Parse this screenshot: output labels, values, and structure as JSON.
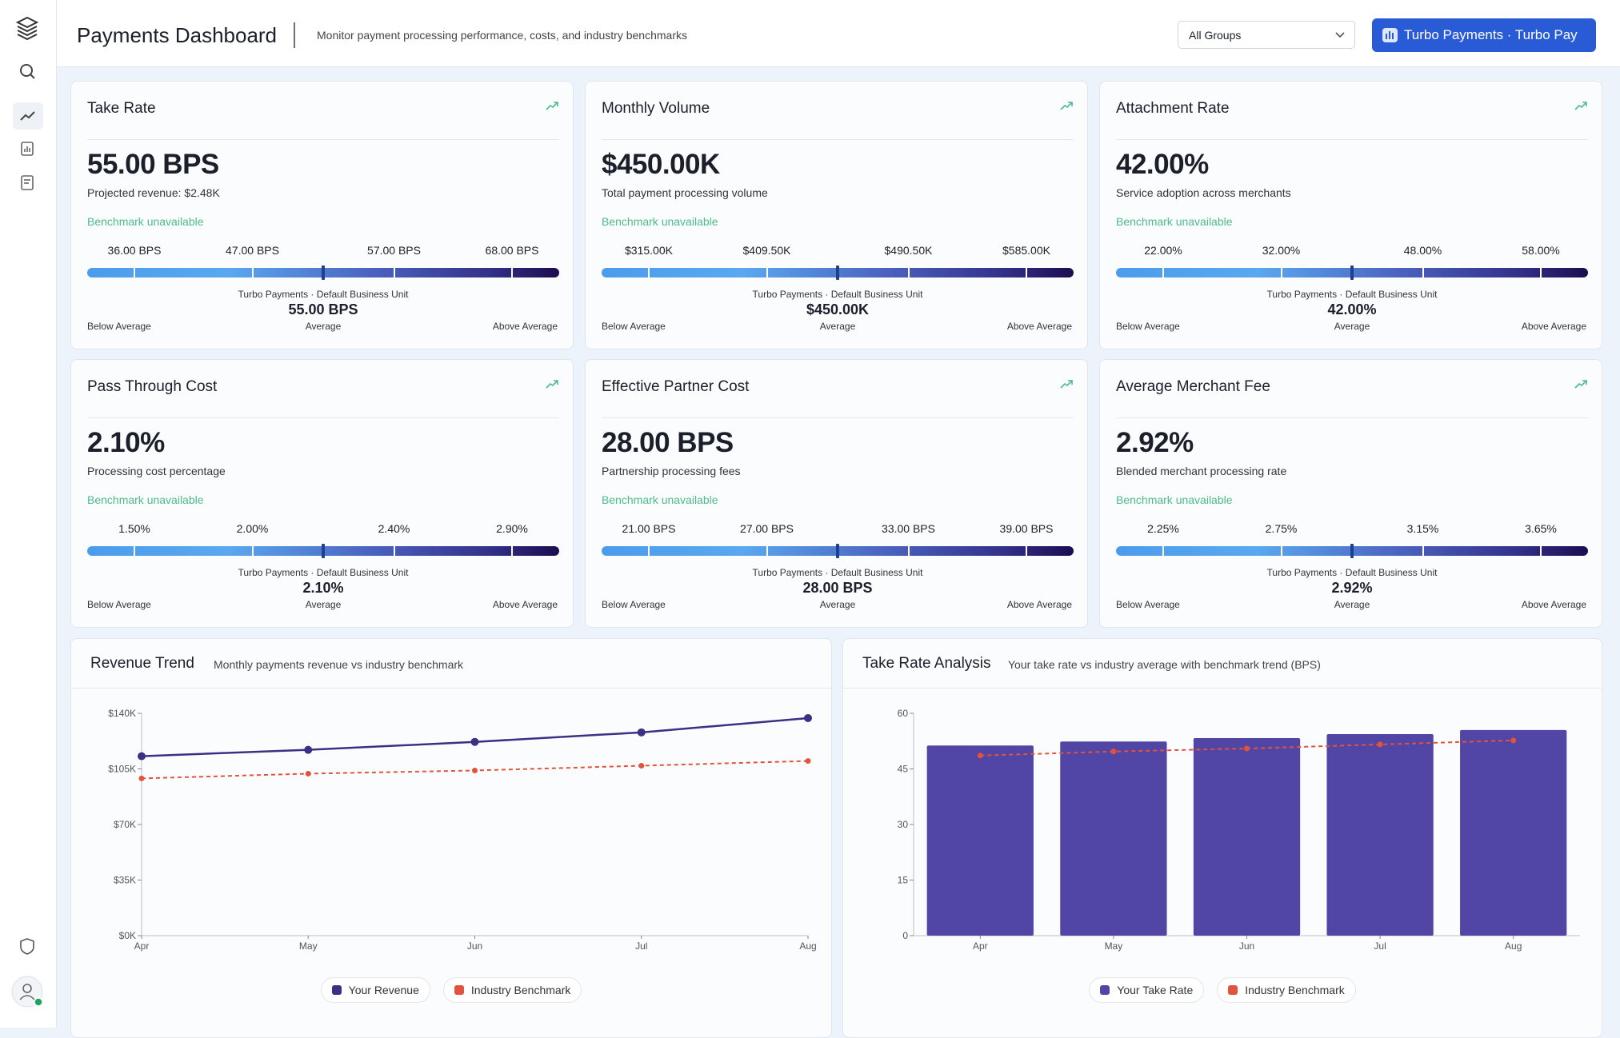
{
  "header": {
    "title": "Payments Dashboard",
    "subtitle": "Monitor payment processing performance, costs, and industry benchmarks",
    "group_select": "All Groups",
    "account_button": "Turbo Payments · Turbo Pay"
  },
  "cards": [
    {
      "title": "Take Rate",
      "value": "55.00 BPS",
      "subtitle": "Projected revenue: $2.48K",
      "benchmark": "Benchmark unavailable",
      "range_labels": [
        "36.00 BPS",
        "47.00 BPS",
        "57.00 BPS",
        "68.00 BPS"
      ],
      "unit_label": "Turbo Payments · Default Business Unit",
      "marker_value": "55.00 BPS",
      "scale_labels": [
        "Below Average",
        "Average",
        "Above Average"
      ]
    },
    {
      "title": "Monthly Volume",
      "value": "$450.00K",
      "subtitle": "Total payment processing volume",
      "benchmark": "Benchmark unavailable",
      "range_labels": [
        "$315.00K",
        "$409.50K",
        "$490.50K",
        "$585.00K"
      ],
      "unit_label": "Turbo Payments · Default Business Unit",
      "marker_value": "$450.00K",
      "scale_labels": [
        "Below Average",
        "Average",
        "Above Average"
      ]
    },
    {
      "title": "Attachment Rate",
      "value": "42.00%",
      "subtitle": "Service adoption across merchants",
      "benchmark": "Benchmark unavailable",
      "range_labels": [
        "22.00%",
        "32.00%",
        "48.00%",
        "58.00%"
      ],
      "unit_label": "Turbo Payments · Default Business Unit",
      "marker_value": "42.00%",
      "scale_labels": [
        "Below Average",
        "Average",
        "Above Average"
      ]
    },
    {
      "title": "Pass Through Cost",
      "value": "2.10%",
      "subtitle": "Processing cost percentage",
      "benchmark": "Benchmark unavailable",
      "range_labels": [
        "1.50%",
        "2.00%",
        "2.40%",
        "2.90%"
      ],
      "unit_label": "Turbo Payments · Default Business Unit",
      "marker_value": "2.10%",
      "scale_labels": [
        "Below Average",
        "Average",
        "Above Average"
      ]
    },
    {
      "title": "Effective Partner Cost",
      "value": "28.00 BPS",
      "subtitle": "Partnership processing fees",
      "benchmark": "Benchmark unavailable",
      "range_labels": [
        "21.00 BPS",
        "27.00 BPS",
        "33.00 BPS",
        "39.00 BPS"
      ],
      "unit_label": "Turbo Payments · Default Business Unit",
      "marker_value": "28.00 BPS",
      "scale_labels": [
        "Below Average",
        "Average",
        "Above Average"
      ]
    },
    {
      "title": "Average Merchant Fee",
      "value": "2.92%",
      "subtitle": "Blended merchant processing rate",
      "benchmark": "Benchmark unavailable",
      "range_labels": [
        "2.25%",
        "2.75%",
        "3.15%",
        "3.65%"
      ],
      "unit_label": "Turbo Payments · Default Business Unit",
      "marker_value": "2.92%",
      "scale_labels": [
        "Below Average",
        "Average",
        "Above Average"
      ]
    }
  ],
  "chart_data": [
    {
      "type": "line",
      "title": "Revenue Trend",
      "subtitle": "Monthly payments revenue vs industry benchmark",
      "categories": [
        "Apr",
        "May",
        "Jun",
        "Jul",
        "Aug"
      ],
      "series": [
        {
          "name": "Your Revenue",
          "color": "#3b2f86",
          "values": [
            113000,
            117000,
            122000,
            128000,
            137000
          ]
        },
        {
          "name": "Industry Benchmark",
          "color": "#e2533b",
          "line_style": "dashed",
          "values": [
            99000,
            102000,
            104000,
            107000,
            110000
          ]
        }
      ],
      "ylim": [
        0,
        140000
      ],
      "yticks": [
        {
          "value": 0,
          "label": "$0K"
        },
        {
          "value": 35000,
          "label": "$35K"
        },
        {
          "value": 70000,
          "label": "$70K"
        },
        {
          "value": 105000,
          "label": "$105K"
        },
        {
          "value": 140000,
          "label": "$140K"
        }
      ]
    },
    {
      "type": "bar",
      "title": "Take Rate Analysis",
      "subtitle": "Your take rate vs industry average with benchmark trend (BPS)",
      "categories": [
        "Apr",
        "May",
        "Jun",
        "Jul",
        "Aug"
      ],
      "series": [
        {
          "name": "Your Take Rate",
          "type": "bar",
          "color": "#5146a6",
          "values": [
            51.3,
            52.4,
            53.3,
            54.4,
            55.5
          ]
        },
        {
          "name": "Industry Benchmark",
          "type": "line",
          "color": "#e2533b",
          "line_style": "dashed",
          "values": [
            48.6,
            49.7,
            50.5,
            51.6,
            52.7
          ]
        }
      ],
      "ylim": [
        0,
        60
      ],
      "yticks": [
        0,
        15,
        30,
        45,
        60
      ]
    }
  ]
}
